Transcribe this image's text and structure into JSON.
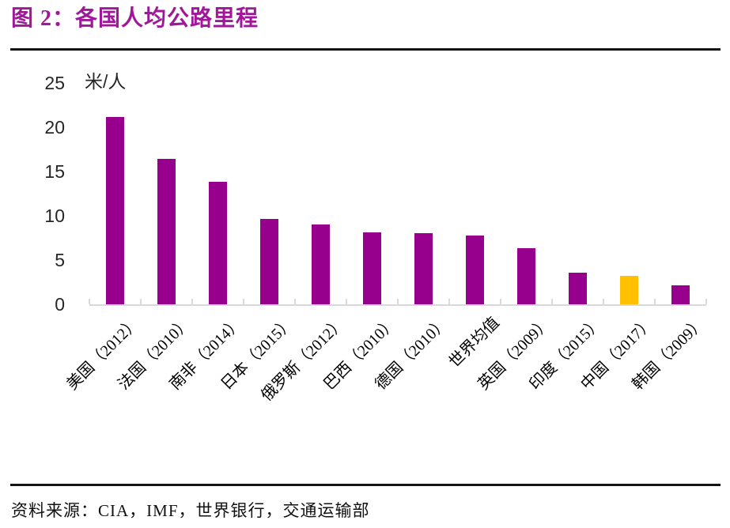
{
  "header": {
    "title": "图 2：各国人均公路里程"
  },
  "chart_data": {
    "type": "bar",
    "title": "各国人均公路里程",
    "unit_label": "米/人",
    "ylabel": "米/人",
    "xlabel": "",
    "categories": [
      "美国（2012）",
      "法国（2010）",
      "南非（2014）",
      "日本（2015）",
      "俄罗斯（2012）",
      "巴西（2010）",
      "德国（2010）",
      "世界均值",
      "英国（2009）",
      "印度（2015）",
      "中国（2017）",
      "韩国（2009）"
    ],
    "values": [
      21.2,
      16.4,
      13.8,
      9.6,
      9.0,
      8.1,
      8.0,
      7.8,
      6.3,
      3.6,
      3.2,
      2.1
    ],
    "highlight_index": 10,
    "highlight_category": "中国（2017）",
    "bar_color": "#96008C",
    "highlight_color": "#FFC000",
    "axis_color": "#D9D9D9",
    "y_ticks": [
      0,
      5,
      10,
      15,
      20,
      25
    ],
    "ylim": [
      0,
      25
    ],
    "grid": false,
    "legend": null
  },
  "footer": {
    "source": "资料来源：CIA，IMF，世界银行，交通运输部"
  }
}
